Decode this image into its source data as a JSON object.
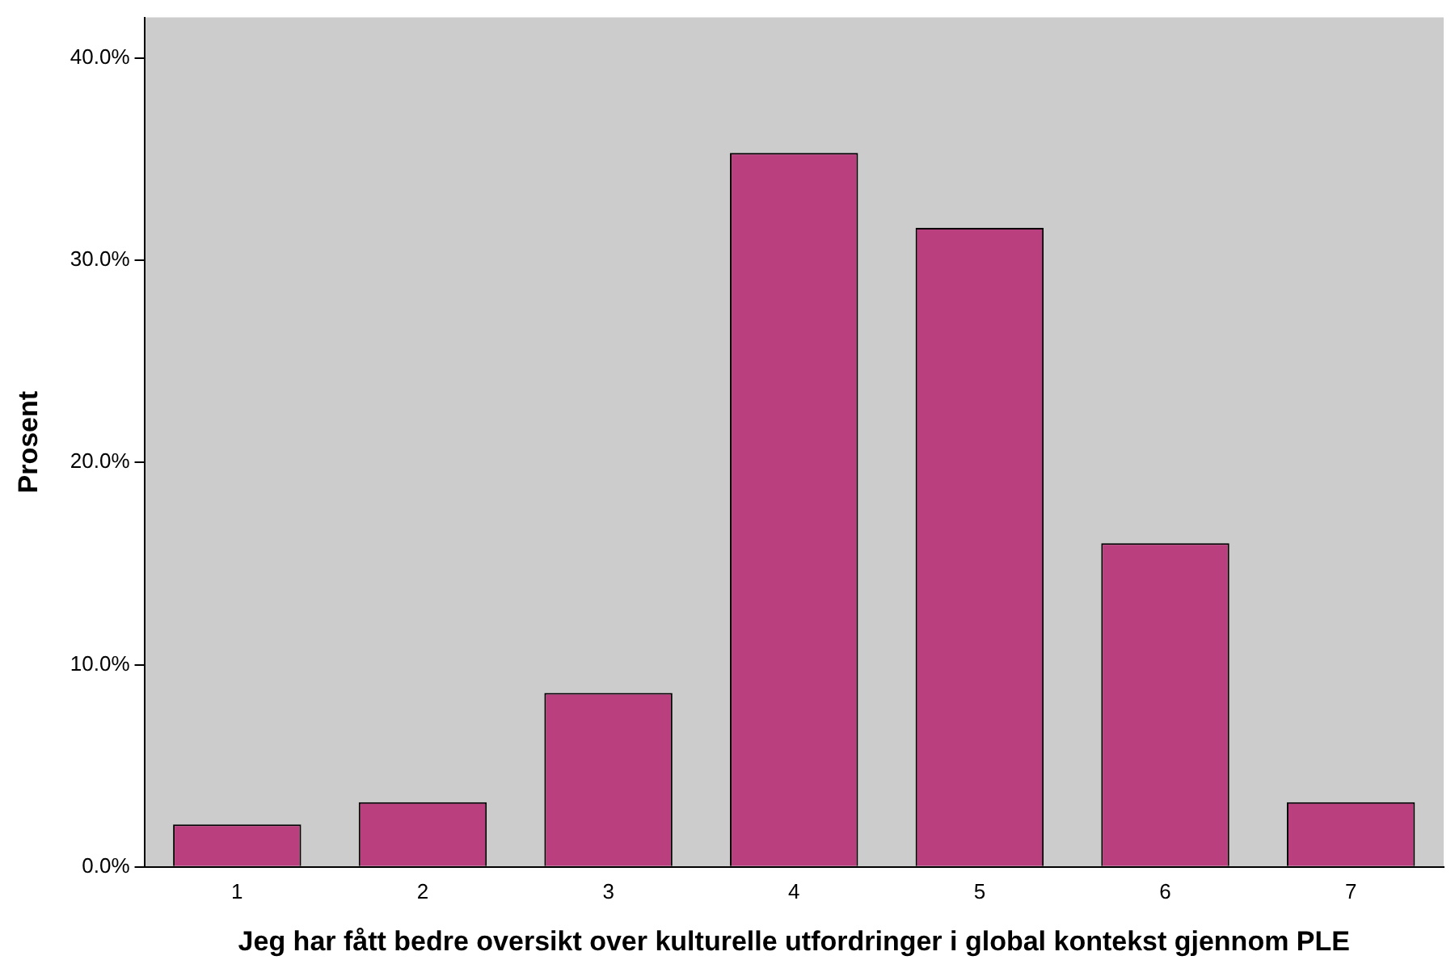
{
  "chart_data": {
    "type": "bar",
    "xlabel": "Jeg har fått bedre oversikt over kulturelle utfordringer i global kontekst gjennom PLE",
    "ylabel": "Prosent",
    "categories": [
      "1",
      "2",
      "3",
      "4",
      "5",
      "6",
      "7"
    ],
    "values": [
      2.1,
      3.2,
      8.6,
      35.3,
      31.6,
      16.0,
      3.2
    ],
    "color": "#ba3f7e",
    "ylim": [
      0,
      42
    ],
    "yticks": [
      {
        "value": 0,
        "label": "0.0%"
      },
      {
        "value": 10,
        "label": "10.0%"
      },
      {
        "value": 20,
        "label": "20.0%"
      },
      {
        "value": 30,
        "label": "30.0%"
      },
      {
        "value": 40,
        "label": "40.0%"
      }
    ],
    "grid": false,
    "legend": false
  }
}
